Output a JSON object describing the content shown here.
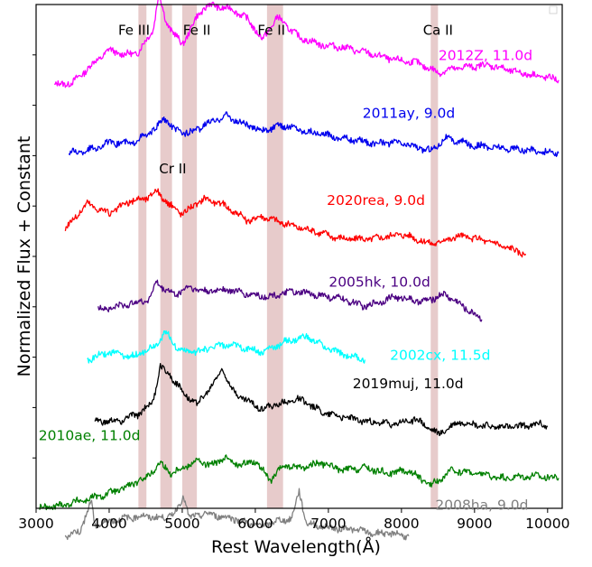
{
  "chart_data": {
    "type": "line",
    "title": "",
    "xlabel": "Rest Wavelength(Å)",
    "ylabel": "Normalized Flux + Constant",
    "xlim": [
      3000,
      10200
    ],
    "ylim": [
      0,
      10
    ],
    "x_ticks": [
      3000,
      4000,
      5000,
      6000,
      7000,
      8000,
      9000,
      10000
    ],
    "y_ticks_labeled": false,
    "grid": false,
    "legend": "none",
    "line_bands": [
      {
        "label": "Fe III",
        "range": [
          4400,
          4510
        ]
      },
      {
        "label": "",
        "range": [
          4700,
          4860
        ]
      },
      {
        "label": "Fe II",
        "range": [
          5000,
          5200
        ]
      },
      {
        "label": "Fe II",
        "range": [
          6160,
          6380
        ]
      },
      {
        "label": "Ca II",
        "range": [
          8400,
          8500
        ]
      }
    ],
    "band_labels": [
      {
        "text": "Fe III",
        "x": 4340,
        "y": 9.4
      },
      {
        "text": "Fe II",
        "x": 5200,
        "y": 9.4
      },
      {
        "text": "Fe II",
        "x": 6220,
        "y": 9.4
      },
      {
        "text": "Ca II",
        "x": 8500,
        "y": 9.4
      },
      {
        "text": "Cr II",
        "x": 4870,
        "y": 6.65
      }
    ],
    "band_color": "#d4a0a0",
    "series": [
      {
        "name": "2012Z, 11.0d",
        "color": "#ff00ff",
        "offset": 8.3,
        "label_x": 9150,
        "label_y": 8.9,
        "x": [
          3250,
          3500,
          3800,
          4000,
          4200,
          4400,
          4600,
          4680,
          4780,
          4900,
          5000,
          5200,
          5350,
          5500,
          5700,
          5900,
          6100,
          6300,
          6600,
          6900,
          7200,
          7500,
          7900,
          8200,
          8500,
          8800,
          9200,
          9600,
          10000,
          10150
        ],
        "y": [
          0.1,
          0.15,
          0.55,
          0.8,
          0.7,
          0.75,
          1.2,
          1.9,
          1.35,
          1.1,
          0.9,
          1.45,
          1.7,
          1.65,
          1.6,
          1.4,
          1.0,
          1.45,
          1.05,
          0.9,
          0.85,
          0.75,
          0.6,
          0.55,
          0.35,
          0.45,
          0.5,
          0.35,
          0.25,
          0.2
        ]
      },
      {
        "name": "2011ay, 9.0d",
        "color": "#0000ee",
        "offset": 7.05,
        "label_x": 8100,
        "label_y": 7.75,
        "x": [
          3450,
          3700,
          4000,
          4300,
          4500,
          4650,
          4750,
          4900,
          5100,
          5300,
          5600,
          5800,
          6100,
          6400,
          6800,
          7200,
          7600,
          8000,
          8400,
          8600,
          9000,
          9400,
          9800,
          10150
        ],
        "y": [
          0.0,
          0.05,
          0.2,
          0.2,
          0.35,
          0.5,
          0.7,
          0.45,
          0.4,
          0.55,
          0.75,
          0.6,
          0.45,
          0.55,
          0.4,
          0.3,
          0.2,
          0.2,
          0.05,
          0.3,
          0.15,
          0.1,
          0.05,
          0.0
        ]
      },
      {
        "name": "2020rea, 9.0d",
        "color": "#ff0000",
        "offset": 5.25,
        "label_x": 7650,
        "label_y": 6.02,
        "x": [
          3400,
          3700,
          4000,
          4300,
          4500,
          4650,
          4800,
          5000,
          5300,
          5600,
          5900,
          6100,
          6400,
          6800,
          7200,
          7600,
          8000,
          8400,
          8800,
          9200,
          9700
        ],
        "y": [
          0.3,
          0.8,
          0.6,
          0.85,
          0.9,
          1.05,
          0.8,
          0.6,
          0.9,
          0.75,
          0.45,
          0.55,
          0.4,
          0.25,
          0.1,
          0.1,
          0.2,
          0.0,
          0.15,
          0.05,
          -0.2
        ]
      },
      {
        "name": "2005hk, 10.0d",
        "color": "#4b0082",
        "offset": 3.95,
        "label_x": 7700,
        "label_y": 4.4,
        "x": [
          3850,
          4100,
          4400,
          4550,
          4650,
          4750,
          4900,
          5100,
          5300,
          5600,
          5900,
          6200,
          6500,
          6800,
          7200,
          7500,
          7900,
          8300,
          8600,
          8800,
          9100
        ],
        "y": [
          0.0,
          0.05,
          0.15,
          0.2,
          0.55,
          0.4,
          0.3,
          0.45,
          0.35,
          0.4,
          0.3,
          0.25,
          0.35,
          0.3,
          0.2,
          0.05,
          0.25,
          0.15,
          0.3,
          0.1,
          -0.2
        ]
      },
      {
        "name": "2002cx, 11.5d",
        "color": "#00ffff",
        "offset": 2.95,
        "label_x": 8530,
        "label_y": 2.95,
        "x": [
          3700,
          4000,
          4300,
          4600,
          4780,
          4950,
          5200,
          5500,
          5800,
          6100,
          6400,
          6700,
          7100,
          7500
        ],
        "y": [
          0.0,
          0.15,
          0.05,
          0.25,
          0.55,
          0.2,
          0.15,
          0.3,
          0.25,
          0.15,
          0.35,
          0.45,
          0.15,
          0.0
        ]
      },
      {
        "name": "2019muj, 11.0d",
        "color": "#000000",
        "offset": 1.72,
        "label_x": 8090,
        "label_y": 2.38,
        "x": [
          3800,
          4100,
          4400,
          4600,
          4700,
          4850,
          5000,
          5200,
          5400,
          5550,
          5700,
          5900,
          6100,
          6300,
          6600,
          6900,
          7200,
          7500,
          7900,
          8200,
          8500,
          8800,
          9200,
          9600,
          9900,
          10000
        ],
        "y": [
          0.0,
          0.0,
          0.15,
          0.4,
          1.1,
          0.9,
          0.6,
          0.35,
          0.7,
          1.05,
          0.6,
          0.4,
          0.25,
          0.35,
          0.45,
          0.2,
          0.1,
          0.0,
          -0.05,
          0.05,
          -0.25,
          0.0,
          -0.1,
          -0.1,
          -0.05,
          -0.1
        ]
      },
      {
        "name": "2010ae, 11.0d",
        "color": "#008000",
        "offset": 0.0,
        "label_x": 3730,
        "label_y": 1.35,
        "x": [
          3050,
          3300,
          3600,
          3900,
          4200,
          4500,
          4700,
          4850,
          5000,
          5200,
          5400,
          5600,
          5800,
          6000,
          6200,
          6400,
          6600,
          6900,
          7200,
          7500,
          7800,
          8100,
          8400,
          8700,
          9000,
          9400,
          9800,
          10150
        ],
        "y": [
          0.0,
          0.05,
          0.15,
          0.25,
          0.4,
          0.6,
          0.9,
          0.7,
          0.8,
          0.95,
          0.85,
          1.0,
          0.85,
          0.95,
          0.55,
          0.85,
          0.8,
          0.9,
          0.75,
          0.8,
          0.7,
          0.75,
          0.45,
          0.75,
          0.7,
          0.6,
          0.65,
          0.6
        ]
      },
      {
        "name": "2008ha, 9.0d",
        "color": "#808080",
        "offset": -0.55,
        "label_x": 9100,
        "label_y": -0.03,
        "x": [
          3400,
          3600,
          3760,
          3800,
          4000,
          4200,
          4500,
          4700,
          4900,
          5020,
          5100,
          5300,
          5500,
          5700,
          5900,
          6100,
          6300,
          6500,
          6600,
          6700,
          6900,
          7100,
          7300,
          7600,
          7900,
          8100
        ],
        "y": [
          0.0,
          0.1,
          0.7,
          0.2,
          0.3,
          0.35,
          0.4,
          0.35,
          0.45,
          0.8,
          0.35,
          0.45,
          0.4,
          0.35,
          0.25,
          0.2,
          0.3,
          0.35,
          0.9,
          0.25,
          0.2,
          0.15,
          0.15,
          0.05,
          0.05,
          0.0
        ]
      }
    ]
  }
}
